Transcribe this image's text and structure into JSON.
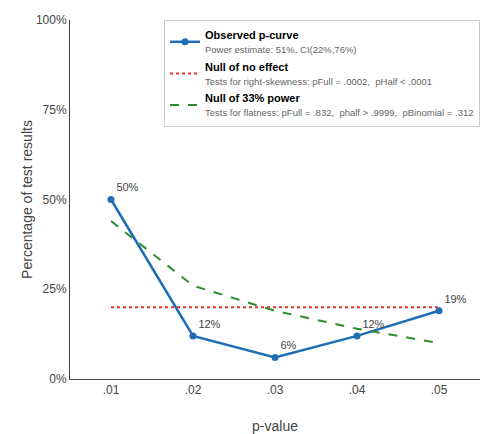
{
  "chart_data": {
    "type": "line",
    "x_label": "p-value",
    "y_label": "Percentage of test results",
    "x": [
      0.01,
      0.02,
      0.03,
      0.04,
      0.05
    ],
    "series": [
      {
        "name": "Observed p-curve",
        "color": "#1f6eb5",
        "line_style": "solid",
        "marker": "circle",
        "values": [
          0.5,
          0.12,
          0.06,
          0.12,
          0.19
        ],
        "data_labels": true,
        "value_labels": [
          "50%",
          "12%",
          "6%",
          "12%",
          "19%"
        ]
      },
      {
        "name": "Null of no effect",
        "color": "#e8302a",
        "line_style": "dot",
        "marker": "none",
        "values": [
          0.2,
          0.2,
          0.2,
          0.2,
          0.2
        ]
      },
      {
        "name": "Null of 33% power",
        "color": "#2e8b2e",
        "line_style": "dash",
        "marker": "none",
        "values": [
          0.44,
          0.26,
          0.19,
          0.14,
          0.1
        ]
      }
    ],
    "annotations": [
      "Power estimate: 51%, CI(22%,76%)",
      "Tests for right-skewness: pFull = .0002,  pHalf < .0001",
      "Tests for flatness: pFull = .832,  phalf > .9999,  pBinomial = .312"
    ],
    "xlim": [
      0.005,
      0.055
    ],
    "xticks": [
      {
        "value": 0.01,
        "label": ".01"
      },
      {
        "value": 0.02,
        "label": ".02"
      },
      {
        "value": 0.03,
        "label": ".03"
      },
      {
        "value": 0.04,
        "label": ".04"
      },
      {
        "value": 0.05,
        "label": ".05"
      }
    ],
    "ylim": [
      0.0,
      1.0
    ],
    "yticks": [
      {
        "value": 0.0,
        "label": "0%"
      },
      {
        "value": 0.25,
        "label": "25%"
      },
      {
        "value": 0.5,
        "label": "50%"
      },
      {
        "value": 0.75,
        "label": "75%"
      },
      {
        "value": 1.0,
        "label": "100%"
      }
    ],
    "grid": false,
    "legend": "upper right"
  }
}
